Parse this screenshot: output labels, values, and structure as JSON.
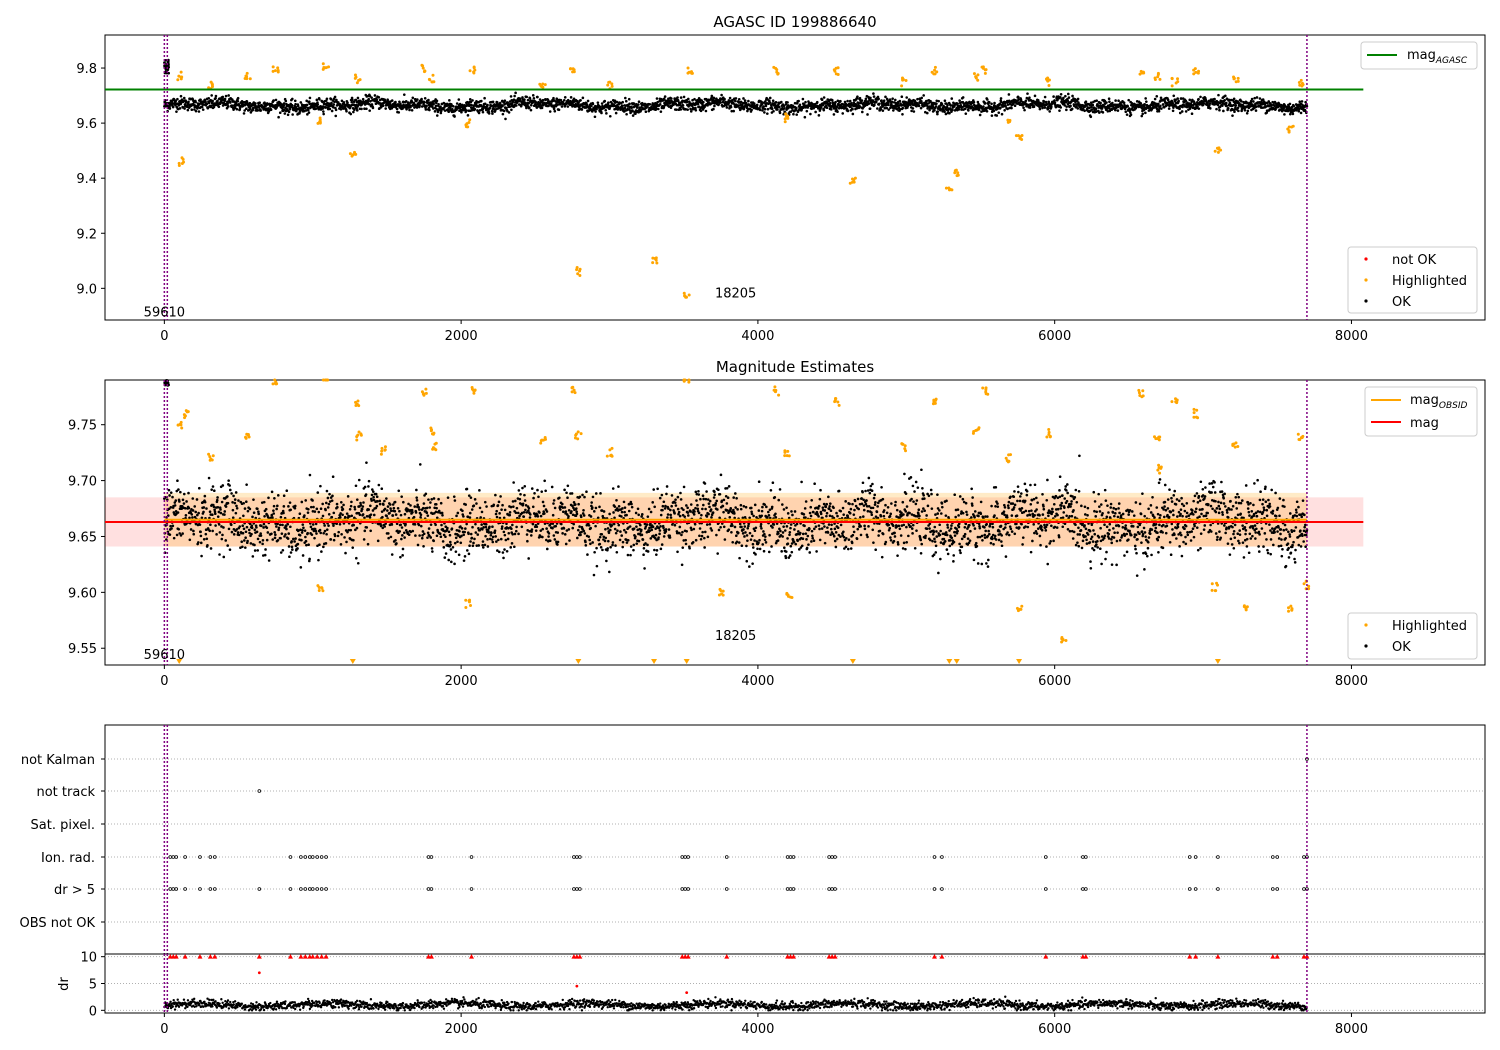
{
  "chart_data": [
    {
      "type": "scatter",
      "title": "AGASC ID 199886640",
      "xlim": [
        -400,
        8900
      ],
      "ylim": [
        8.885,
        9.92
      ],
      "xticks": [
        0,
        2000,
        4000,
        6000,
        8000
      ],
      "yticks": [
        9.0,
        9.2,
        9.4,
        9.6,
        9.8
      ],
      "ytick_labels": [
        "9.0",
        "9.2",
        "9.4",
        "9.6",
        "9.8"
      ],
      "vlines": [
        0,
        20,
        7700
      ],
      "annotations": [
        {
          "text": "59610",
          "x": 0,
          "y": 8.915
        },
        {
          "text": "18205",
          "x": 3850,
          "y": 8.985
        }
      ],
      "hline": {
        "name": "mag_AGASC",
        "y": 9.722,
        "x": [
          -400,
          8080
        ],
        "color": "#008000"
      },
      "legend_line": {
        "label": "mag",
        "sub": "AGASC",
        "color": "#008000"
      },
      "legend_scatter": [
        {
          "label": "not OK",
          "color": "#ff0000"
        },
        {
          "label": "Highlighted",
          "color": "#ffa500"
        },
        {
          "label": "OK",
          "color": "#000000"
        }
      ],
      "series": [
        {
          "name": "OK",
          "color": "#000000",
          "description": "dense band",
          "x": [
            0,
            7700
          ],
          "y_mean": 9.665,
          "y_spread": 0.02
        },
        {
          "name": "Highlighted",
          "color": "#ffa500",
          "points": [
            [
              100,
              9.77
            ],
            [
              110,
              9.46
            ],
            [
              310,
              9.74
            ],
            [
              560,
              9.77
            ],
            [
              750,
              9.79
            ],
            [
              1050,
              9.61
            ],
            [
              1090,
              9.81
            ],
            [
              1270,
              9.49
            ],
            [
              1300,
              9.76
            ],
            [
              1750,
              9.8
            ],
            [
              1800,
              9.76
            ],
            [
              2050,
              9.6
            ],
            [
              2080,
              9.79
            ],
            [
              2550,
              9.73
            ],
            [
              2750,
              9.8
            ],
            [
              2790,
              9.06
            ],
            [
              3000,
              9.74
            ],
            [
              3300,
              9.1
            ],
            [
              3520,
              8.97
            ],
            [
              3540,
              9.79
            ],
            [
              4120,
              9.79
            ],
            [
              4190,
              9.62
            ],
            [
              4530,
              9.79
            ],
            [
              4640,
              9.39
            ],
            [
              4980,
              9.75
            ],
            [
              5190,
              9.79
            ],
            [
              5290,
              9.36
            ],
            [
              5340,
              9.42
            ],
            [
              5470,
              9.77
            ],
            [
              5530,
              9.79
            ],
            [
              5690,
              9.61
            ],
            [
              5760,
              9.54
            ],
            [
              5960,
              9.75
            ],
            [
              6580,
              9.78
            ],
            [
              6690,
              9.77
            ],
            [
              6810,
              9.75
            ],
            [
              6950,
              9.79
            ],
            [
              7100,
              9.5
            ],
            [
              7220,
              9.76
            ],
            [
              7590,
              9.58
            ],
            [
              7660,
              9.74
            ]
          ]
        }
      ]
    },
    {
      "type": "scatter",
      "title": "Magnitude Estimates",
      "xlim": [
        -400,
        8900
      ],
      "ylim": [
        9.535,
        9.79
      ],
      "xticks": [
        0,
        2000,
        4000,
        6000,
        8000
      ],
      "yticks": [
        9.55,
        9.6,
        9.65,
        9.7,
        9.75
      ],
      "ytick_labels": [
        "9.55",
        "9.60",
        "9.65",
        "9.70",
        "9.75"
      ],
      "vlines": [
        0,
        20,
        7700
      ],
      "annotations": [
        {
          "text": "59610",
          "x": 0,
          "y": 9.545
        },
        {
          "text": "18205",
          "x": 3850,
          "y": 9.562
        }
      ],
      "mag_line": {
        "y": 9.663,
        "band": [
          9.641,
          9.685
        ],
        "x": [
          -400,
          8080
        ],
        "color": "#ff0000"
      },
      "mag_obsid_line": {
        "y": 9.665,
        "band": [
          9.641,
          9.689
        ],
        "x": [
          0,
          7700
        ],
        "color": "#ffa500"
      },
      "legend_lines": [
        {
          "label": "mag",
          "sub": "OBSID",
          "color": "#ffa500"
        },
        {
          "label": "mag",
          "sub": "",
          "color": "#ff0000"
        }
      ],
      "legend_scatter": [
        {
          "label": "Highlighted",
          "color": "#ffa500"
        },
        {
          "label": "OK",
          "color": "#000000"
        }
      ],
      "series": [
        {
          "name": "OK",
          "color": "#000000",
          "description": "dense band",
          "x": [
            0,
            7700
          ],
          "y_mean": 9.663,
          "y_spread": 0.018
        },
        {
          "name": "Highlighted",
          "color": "#ffa500",
          "points": [
            [
              100,
              9.75
            ],
            [
              150,
              9.76
            ],
            [
              310,
              9.72
            ],
            [
              560,
              9.74
            ],
            [
              750,
              9.79
            ],
            [
              1050,
              9.605
            ],
            [
              1090,
              9.79
            ],
            [
              1300,
              9.77
            ],
            [
              1310,
              9.74
            ],
            [
              1470,
              9.727
            ],
            [
              1750,
              9.78
            ],
            [
              1800,
              9.745
            ],
            [
              1820,
              9.73
            ],
            [
              2050,
              9.59
            ],
            [
              2080,
              9.78
            ],
            [
              2550,
              9.735
            ],
            [
              2760,
              9.78
            ],
            [
              2790,
              9.74
            ],
            [
              3000,
              9.725
            ],
            [
              3520,
              9.79
            ],
            [
              3760,
              9.6
            ],
            [
              4120,
              9.78
            ],
            [
              4200,
              9.725
            ],
            [
              4210,
              9.597
            ],
            [
              4530,
              9.77
            ],
            [
              4980,
              9.73
            ],
            [
              5190,
              9.77
            ],
            [
              5470,
              9.745
            ],
            [
              5530,
              9.78
            ],
            [
              5690,
              9.72
            ],
            [
              5760,
              9.585
            ],
            [
              5960,
              9.742
            ],
            [
              6060,
              9.559
            ],
            [
              6580,
              9.777
            ],
            [
              6690,
              9.74
            ],
            [
              6710,
              9.71
            ],
            [
              6810,
              9.77
            ],
            [
              6950,
              9.76
            ],
            [
              7080,
              9.605
            ],
            [
              7220,
              9.73
            ],
            [
              7280,
              9.587
            ],
            [
              7590,
              9.586
            ],
            [
              7660,
              9.74
            ],
            [
              7700,
              9.607
            ]
          ]
        },
        {
          "name": "Highlighted (off-scale)",
          "color": "#ffa500",
          "marker": "triangle-down",
          "x_values": [
            100,
            1270,
            2790,
            3300,
            3520,
            4640,
            5290,
            5340,
            5760,
            7100
          ]
        }
      ]
    },
    {
      "type": "scatter",
      "title": "",
      "xlim": [
        -400,
        8900
      ],
      "categories": [
        "not Kalman",
        "not track",
        "Sat. pixel.",
        "Ion. rad.",
        "dr > 5",
        "OBS not OK"
      ],
      "vlines": [
        0,
        20,
        7700
      ],
      "flag_points": {
        "not Kalman": [
          7700
        ],
        "not track": [
          640
        ],
        "Sat. pixel.": [],
        "Ion. rad.": [
          40,
          60,
          80,
          140,
          240,
          310,
          340,
          850,
          920,
          950,
          980,
          1000,
          1030,
          1060,
          1090,
          1780,
          1800,
          2070,
          2760,
          2780,
          2800,
          3490,
          3510,
          3530,
          3790,
          4200,
          4220,
          4240,
          4480,
          4500,
          4520,
          5190,
          5240,
          5940,
          6190,
          6210,
          6910,
          6950,
          7100,
          7470,
          7500,
          7680,
          7700
        ],
        "dr > 5": [
          40,
          60,
          80,
          140,
          240,
          310,
          340,
          640,
          850,
          920,
          950,
          980,
          1000,
          1030,
          1060,
          1090,
          1780,
          1800,
          2070,
          2760,
          2780,
          2800,
          3490,
          3510,
          3530,
          3790,
          4200,
          4220,
          4240,
          4480,
          4500,
          4520,
          5190,
          5240,
          5940,
          6190,
          6210,
          6910,
          6950,
          7100,
          7470,
          7500,
          7680,
          7700
        ],
        "OBS not OK": []
      }
    },
    {
      "type": "scatter",
      "title": "",
      "xlim": [
        -400,
        8900
      ],
      "ylim": [
        -0.5,
        10.5
      ],
      "ylabel": "dr",
      "yticks": [
        0,
        5,
        10
      ],
      "ytick_labels": [
        "0",
        "5",
        "10"
      ],
      "xticks": [
        0,
        2000,
        4000,
        6000,
        8000
      ],
      "vlines": [
        0,
        20,
        7700
      ],
      "series": [
        {
          "name": "OK",
          "color": "#000000",
          "description": "dense band",
          "x": [
            0,
            7700
          ],
          "y_mean": 1.0,
          "y_spread": 0.4
        },
        {
          "name": "not OK",
          "color": "#ff0000",
          "points": [
            [
              640,
              7.0
            ],
            [
              2780,
              4.5
            ],
            [
              3520,
              3.3
            ]
          ],
          "clipped_marker": "triangle-up",
          "clipped_x": [
            40,
            60,
            80,
            140,
            240,
            310,
            340,
            640,
            850,
            920,
            950,
            980,
            1000,
            1030,
            1060,
            1090,
            1780,
            1800,
            2070,
            2760,
            2780,
            2800,
            3490,
            3510,
            3530,
            3790,
            4200,
            4220,
            4240,
            4480,
            4500,
            4520,
            5190,
            5240,
            5940,
            6190,
            6210,
            6910,
            6950,
            7100,
            7470,
            7500,
            7680,
            7700
          ]
        }
      ]
    }
  ]
}
